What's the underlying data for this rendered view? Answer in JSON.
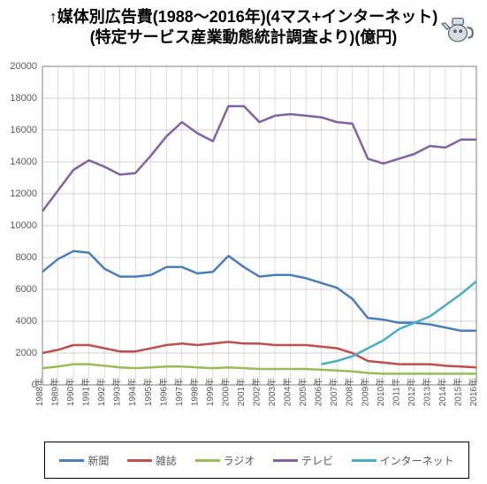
{
  "title_line1": "↑媒体別広告費(1988～2016年)(4マス+インターネット)",
  "title_line2": "(特定サービス産業動態統計調査より)(億円)",
  "kettle_icon_name": "kettle-mascot-icon",
  "chart": {
    "type": "line",
    "background_color": "#ffffff",
    "grid_color": "#bfbfbf",
    "axis_color": "#808080",
    "tick_font_color": "#595959",
    "ylim": [
      0,
      20000
    ],
    "ytick_step": 2000,
    "yticks": [
      0,
      2000,
      4000,
      6000,
      8000,
      10000,
      12000,
      14000,
      16000,
      18000,
      20000
    ],
    "xlabels": [
      "1988年",
      "1989年",
      "1990年",
      "1991年",
      "1992年",
      "1993年",
      "1994年",
      "1995年",
      "1996年",
      "1997年",
      "1998年",
      "1999年",
      "2000年",
      "2001年",
      "2002年",
      "2003年",
      "2004年",
      "2005年",
      "2006年",
      "2007年",
      "2008年",
      "2009年",
      "2010年",
      "2011年",
      "2012年",
      "2013年",
      "2014年",
      "2015年",
      "2016年"
    ],
    "line_width": 2.5,
    "legend_border_color": "#000000",
    "series": [
      {
        "name": "新聞",
        "label": "新聞",
        "color": "#4a7ebb",
        "data": [
          7100,
          7900,
          8400,
          8300,
          7300,
          6800,
          6800,
          6900,
          7400,
          7400,
          7000,
          7100,
          8100,
          7400,
          6800,
          6900,
          6900,
          6700,
          6400,
          6100,
          5400,
          4200,
          4100,
          3900,
          3900,
          3800,
          3600,
          3400,
          3400
        ]
      },
      {
        "name": "雑誌",
        "label": "雑誌",
        "color": "#c0504d",
        "data": [
          2000,
          2200,
          2500,
          2500,
          2300,
          2100,
          2100,
          2300,
          2500,
          2600,
          2500,
          2600,
          2700,
          2600,
          2600,
          2500,
          2500,
          2500,
          2400,
          2300,
          2000,
          1500,
          1400,
          1300,
          1300,
          1300,
          1200,
          1150,
          1100
        ]
      },
      {
        "name": "ラジオ",
        "label": "ラジオ",
        "color": "#9bbb59",
        "data": [
          1050,
          1150,
          1300,
          1300,
          1200,
          1100,
          1050,
          1100,
          1150,
          1150,
          1100,
          1050,
          1100,
          1050,
          1000,
          1000,
          1000,
          1000,
          950,
          900,
          850,
          750,
          700,
          700,
          700,
          700,
          700,
          700,
          700
        ]
      },
      {
        "name": "テレビ",
        "label": "テレビ",
        "color": "#8064a2",
        "data": [
          10900,
          12200,
          13500,
          14100,
          13700,
          13200,
          13300,
          14400,
          15600,
          16500,
          15800,
          15300,
          17500,
          17500,
          16500,
          16900,
          17000,
          16900,
          16800,
          16500,
          16400,
          14200,
          13900,
          14200,
          14500,
          15000,
          14900,
          15400,
          15400
        ]
      },
      {
        "name": "インターネット",
        "label": "インターネット",
        "color": "#4bacc6",
        "data": [
          null,
          null,
          null,
          null,
          null,
          null,
          null,
          null,
          null,
          null,
          null,
          null,
          null,
          null,
          null,
          null,
          null,
          null,
          1300,
          1500,
          1800,
          2300,
          2800,
          3500,
          3900,
          4300,
          5000,
          5700,
          6500
        ]
      }
    ]
  },
  "legend": {
    "items": [
      {
        "label": "新聞",
        "color": "#4a7ebb"
      },
      {
        "label": "雑誌",
        "color": "#c0504d"
      },
      {
        "label": "ラジオ",
        "color": "#9bbb59"
      },
      {
        "label": "テレビ",
        "color": "#8064a2"
      },
      {
        "label": "インターネット",
        "color": "#4bacc6"
      }
    ]
  }
}
